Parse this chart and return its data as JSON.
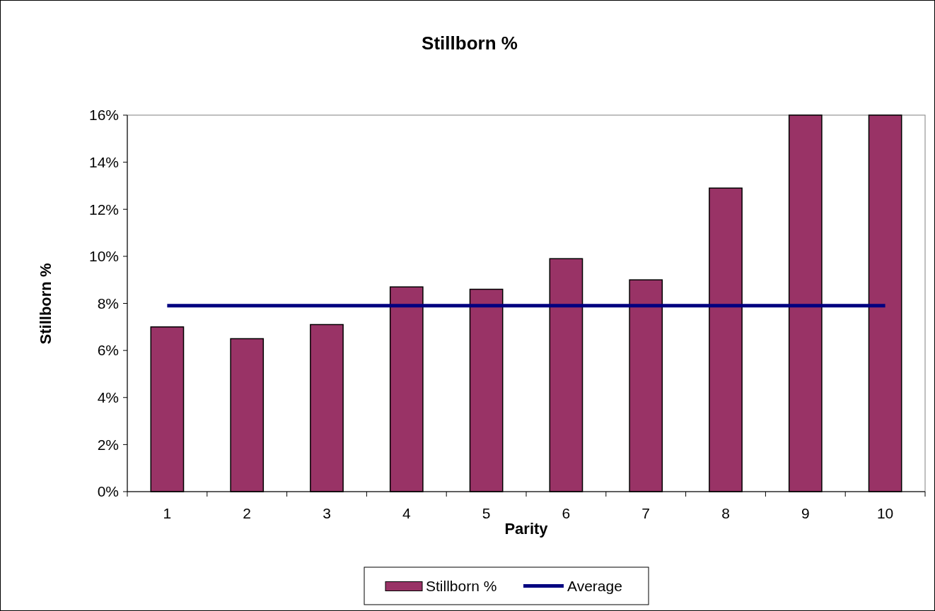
{
  "chart_data": {
    "type": "bar",
    "title": "Stillborn %",
    "xlabel": "Parity",
    "ylabel": "Stillborn %",
    "categories": [
      "1",
      "2",
      "3",
      "4",
      "5",
      "6",
      "7",
      "8",
      "9",
      "10"
    ],
    "series": [
      {
        "name": "Stillborn %",
        "color": "#993366",
        "values": [
          7.0,
          6.5,
          7.1,
          8.7,
          8.6,
          9.9,
          9.0,
          12.9,
          16,
          16
        ]
      },
      {
        "name": "Average",
        "type": "line",
        "color": "#000080",
        "values": [
          7.9,
          7.9,
          7.9,
          7.9,
          7.9,
          7.9,
          7.9,
          7.9,
          7.9,
          7.9
        ]
      }
    ],
    "ylim": [
      0,
      16
    ],
    "yticks": [
      {
        "value": 0,
        "label": "0%"
      },
      {
        "value": 2,
        "label": "2%"
      },
      {
        "value": 4,
        "label": "4%"
      },
      {
        "value": 6,
        "label": "6%"
      },
      {
        "value": 8,
        "label": "8%"
      },
      {
        "value": 10,
        "label": "10%"
      },
      {
        "value": 12,
        "label": "12%"
      },
      {
        "value": 14,
        "label": "14%"
      },
      {
        "value": 16,
        "label": "16%"
      }
    ],
    "grid": false,
    "legend": "bottom"
  }
}
